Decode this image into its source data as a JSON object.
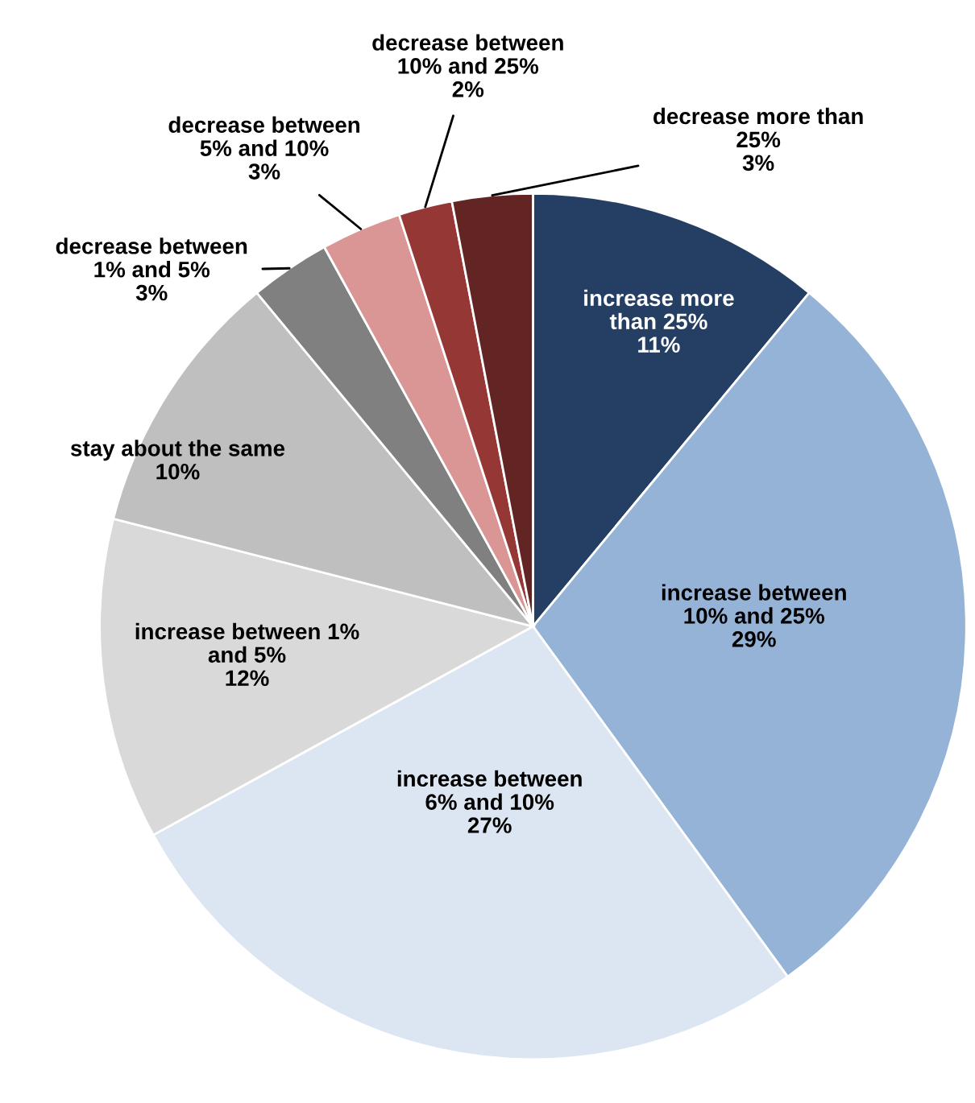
{
  "chart_data": {
    "type": "pie",
    "categories": [
      "increase more\nthan 25%",
      "increase between\n10% and 25%",
      "increase between\n6% and 10%",
      "increase between 1%\nand 5%",
      "stay about the same",
      "decrease between\n1% and 5%",
      "decrease between\n5% and 10%",
      "decrease between\n10% and 25%",
      "decrease more than\n25%"
    ],
    "values": [
      11,
      29,
      27,
      12,
      10,
      3,
      3,
      2,
      3
    ],
    "value_labels": [
      "11%",
      "29%",
      "27%",
      "12%",
      "10%",
      "3%",
      "3%",
      "2%",
      "3%"
    ],
    "colors": [
      "#243f63",
      "#95b3d7",
      "#dce6f2",
      "#d9d9d9",
      "#bfbfbf",
      "#808080",
      "#d99694",
      "#953735",
      "#632523"
    ]
  }
}
